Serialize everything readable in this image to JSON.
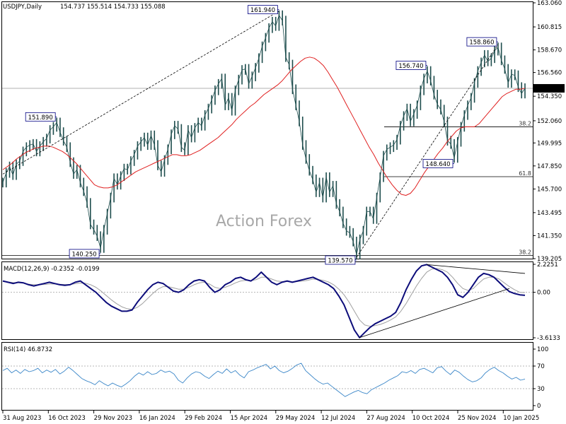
{
  "header": {
    "symbol": "USDJPY,Daily",
    "ohlc": "154.737 155.514 154.733 155.088"
  },
  "watermark": "Action Forex",
  "colors": {
    "price": "#1e4d4d",
    "sma": "#e02020",
    "macd": "#0c0c7a",
    "signal": "#a0a0a0",
    "rsi": "#3a86c8",
    "grid": "#c0c0c0",
    "current_price_box": "#000000"
  },
  "chart_data": {
    "type": "line",
    "x_tick_labels": [
      "31 Aug 2023",
      "16 Oct 2023",
      "29 Nov 2023",
      "16 Jan 2024",
      "29 Feb 2024",
      "15 Apr 2024",
      "29 May 2024",
      "12 Jul 2024",
      "27 Aug 2024",
      "10 Oct 2024",
      "25 Nov 2024",
      "10 Jan 2025"
    ],
    "price_pane": {
      "ylim": [
        139.205,
        163.06
      ],
      "y_ticks": [
        "163.060",
        "160.815",
        "158.670",
        "156.560",
        "154.350",
        "152.060",
        "149.995",
        "147.850",
        "145.700",
        "143.495",
        "141.350",
        "139.205"
      ],
      "current_price": "155.088",
      "series": [
        {
          "kind": "price",
          "values": [
            146.3,
            147.2,
            147.8,
            147.0,
            148.0,
            148.3,
            149.2,
            149.6,
            149.8,
            149.9,
            149.2,
            149.7,
            150.1,
            150.4,
            151.2,
            151.5,
            151.9,
            151.0,
            150.2,
            149.6,
            148.2,
            147.1,
            147.5,
            146.3,
            145.5,
            144.4,
            142.4,
            141.9,
            141.3,
            140.2,
            141.9,
            143.4,
            144.9,
            146.7,
            146.1,
            146.9,
            147.6,
            147.5,
            148.3,
            148.9,
            149.7,
            150.1,
            150.5,
            149.8,
            150.7,
            149.8,
            147.9,
            147.3,
            148.4,
            149.4,
            150.8,
            151.6,
            151.3,
            149.6,
            149.3,
            151.2,
            150.5,
            151.4,
            151.9,
            151.6,
            152.6,
            153.2,
            154.0,
            154.9,
            155.5,
            156.0,
            153.5,
            154.2,
            153.0,
            154.9,
            155.9,
            156.8,
            156.9,
            155.5,
            156.2,
            157.0,
            157.9,
            159.0,
            159.8,
            160.7,
            161.3,
            160.9,
            161.9,
            161.4,
            158.0,
            157.3,
            155.0,
            153.5,
            152.0,
            149.8,
            148.5,
            147.4,
            146.6,
            145.4,
            146.3,
            144.9,
            146.8,
            145.4,
            146.0,
            144.3,
            143.6,
            142.5,
            141.8,
            141.6,
            140.8,
            139.6,
            141.0,
            141.8,
            143.6,
            143.6,
            142.9,
            144.9,
            146.8,
            148.8,
            149.4,
            149.6,
            149.8,
            150.3,
            151.6,
            152.5,
            153.2,
            152.0,
            152.7,
            153.5,
            154.9,
            156.0,
            156.7,
            155.8,
            154.5,
            153.6,
            153.1,
            152.0,
            150.2,
            149.9,
            148.6,
            150.1,
            151.5,
            152.6,
            153.5,
            154.2,
            155.6,
            156.7,
            157.5,
            158.2,
            157.6,
            157.9,
            158.6,
            158.9,
            157.7,
            156.9,
            155.6,
            156.4,
            156.3,
            155.2,
            154.6,
            155.1
          ]
        },
        {
          "kind": "sma",
          "values": [
            147.5,
            147.8,
            148.1,
            148.5,
            148.8,
            149.1,
            149.3,
            149.5,
            149.6,
            149.7,
            149.7,
            149.6,
            149.4,
            149.2,
            148.9,
            148.5,
            148.1,
            147.6,
            147.1,
            146.6,
            146.1,
            145.9,
            145.8,
            145.8,
            145.9,
            146.1,
            146.4,
            146.7,
            147.0,
            147.3,
            147.5,
            147.7,
            147.9,
            148.1,
            148.3,
            148.5,
            148.7,
            148.9,
            148.9,
            148.8,
            148.8,
            148.9,
            149.1,
            149.3,
            149.6,
            149.9,
            150.2,
            150.5,
            150.9,
            151.3,
            151.7,
            152.2,
            152.6,
            153.0,
            153.4,
            153.7,
            154.1,
            154.5,
            154.8,
            155.1,
            155.4,
            155.8,
            156.3,
            156.8,
            157.2,
            157.6,
            157.9,
            158.0,
            157.9,
            157.6,
            157.2,
            156.6,
            155.9,
            155.2,
            154.4,
            153.6,
            152.8,
            152.0,
            151.2,
            150.4,
            149.6,
            148.9,
            148.1,
            147.4,
            146.7,
            146.1,
            145.6,
            145.2,
            145.1,
            145.3,
            145.8,
            146.5,
            147.2,
            147.8,
            148.4,
            149.0,
            149.5,
            150.1,
            150.6,
            151.1,
            151.4,
            151.5,
            151.5,
            151.5,
            151.8,
            152.3,
            152.8,
            153.3,
            153.8,
            154.3,
            154.6,
            154.8,
            155.0,
            155.0,
            155.1
          ]
        }
      ],
      "annotations": [
        {
          "label": "161.940",
          "kind": "high"
        },
        {
          "label": "151.890",
          "kind": "high"
        },
        {
          "label": "140.250",
          "kind": "low"
        },
        {
          "label": "139.570",
          "kind": "low"
        },
        {
          "label": "156.740",
          "kind": "high"
        },
        {
          "label": "158.860",
          "kind": "high"
        },
        {
          "label": "148.640",
          "kind": "low"
        }
      ],
      "fib_levels": [
        {
          "label": "38.2",
          "value": 151.5
        },
        {
          "label": "61.8",
          "value": 146.85
        },
        {
          "label": "38.2",
          "value": 139.5
        }
      ]
    },
    "macd_pane": {
      "title": "MACD(12,26,9) -0.2352 -0.0199",
      "ylim": [
        -3.6133,
        2.2251
      ],
      "y_ticks": [
        "2.2251",
        "0.00",
        "-3.6133"
      ],
      "series": [
        {
          "kind": "macd",
          "values": [
            0.9,
            0.8,
            0.7,
            0.8,
            0.75,
            0.6,
            0.5,
            0.6,
            0.7,
            0.8,
            0.7,
            0.6,
            0.55,
            0.6,
            0.8,
            0.9,
            0.6,
            0.3,
            0.0,
            -0.4,
            -0.8,
            -1.1,
            -1.3,
            -1.5,
            -1.5,
            -1.4,
            -0.8,
            -0.3,
            0.2,
            0.6,
            0.8,
            0.7,
            0.4,
            0.1,
            0.0,
            0.2,
            0.6,
            0.9,
            1.0,
            0.9,
            0.4,
            0.0,
            0.2,
            0.6,
            0.8,
            1.1,
            1.2,
            1.0,
            0.9,
            1.2,
            1.6,
            1.2,
            0.8,
            0.6,
            0.8,
            0.9,
            0.8,
            0.9,
            1.0,
            1.1,
            1.2,
            1.0,
            0.8,
            0.6,
            0.3,
            -0.3,
            -1.0,
            -2.0,
            -3.0,
            -3.6,
            -3.2,
            -2.8,
            -2.5,
            -2.3,
            -2.1,
            -1.9,
            -1.6,
            -0.8,
            0.2,
            1.0,
            1.7,
            2.1,
            2.2,
            2.0,
            1.8,
            1.6,
            1.2,
            0.6,
            -0.2,
            -0.4,
            0.0,
            0.6,
            1.2,
            1.5,
            1.4,
            1.2,
            0.8,
            0.4,
            0.05,
            -0.1,
            -0.2,
            -0.24
          ]
        },
        {
          "kind": "signal",
          "values": [
            0.85,
            0.82,
            0.78,
            0.76,
            0.72,
            0.65,
            0.6,
            0.6,
            0.62,
            0.66,
            0.66,
            0.64,
            0.62,
            0.62,
            0.68,
            0.74,
            0.72,
            0.6,
            0.4,
            0.1,
            -0.25,
            -0.6,
            -0.9,
            -1.15,
            -1.3,
            -1.35,
            -1.2,
            -0.9,
            -0.5,
            -0.1,
            0.25,
            0.45,
            0.45,
            0.35,
            0.25,
            0.25,
            0.4,
            0.6,
            0.75,
            0.8,
            0.65,
            0.4,
            0.3,
            0.4,
            0.55,
            0.75,
            0.9,
            0.95,
            0.92,
            1.0,
            1.2,
            1.2,
            1.05,
            0.9,
            0.85,
            0.85,
            0.83,
            0.85,
            0.9,
            0.95,
            1.05,
            1.02,
            0.95,
            0.82,
            0.6,
            0.25,
            -0.2,
            -0.8,
            -1.5,
            -2.2,
            -2.6,
            -2.7,
            -2.65,
            -2.55,
            -2.4,
            -2.2,
            -1.95,
            -1.5,
            -0.9,
            -0.2,
            0.5,
            1.1,
            1.6,
            1.85,
            1.9,
            1.8,
            1.6,
            1.2,
            0.7,
            0.3,
            0.15,
            0.3,
            0.7,
            1.05,
            1.2,
            1.2,
            1.05,
            0.75,
            0.45,
            0.2,
            0.0,
            -0.02
          ]
        }
      ]
    },
    "rsi_pane": {
      "title": "RSI(14) 46.8732",
      "ylim": [
        0,
        100
      ],
      "y_ticks": [
        "100",
        "70",
        "30",
        "0"
      ],
      "series": [
        {
          "kind": "rsi",
          "values": [
            62,
            66,
            58,
            63,
            57,
            64,
            60,
            62,
            66,
            58,
            63,
            59,
            64,
            56,
            61,
            68,
            62,
            55,
            48,
            44,
            41,
            37,
            44,
            39,
            35,
            40,
            36,
            33,
            38,
            44,
            52,
            58,
            54,
            60,
            55,
            57,
            63,
            59,
            61,
            56,
            45,
            40,
            49,
            56,
            60,
            58,
            52,
            48,
            55,
            61,
            57,
            65,
            58,
            62,
            54,
            49,
            60,
            63,
            67,
            70,
            73,
            65,
            70,
            62,
            58,
            61,
            66,
            72,
            75,
            62,
            55,
            48,
            42,
            38,
            40,
            34,
            28,
            22,
            16,
            20,
            24,
            27,
            23,
            21,
            28,
            32,
            36,
            40,
            45,
            49,
            53,
            60,
            58,
            62,
            57,
            64,
            66,
            62,
            58,
            67,
            69,
            61,
            55,
            63,
            59,
            52,
            46,
            42,
            44,
            49,
            58,
            64,
            68,
            62,
            58,
            52,
            47,
            50,
            45,
            47
          ]
        }
      ]
    }
  }
}
